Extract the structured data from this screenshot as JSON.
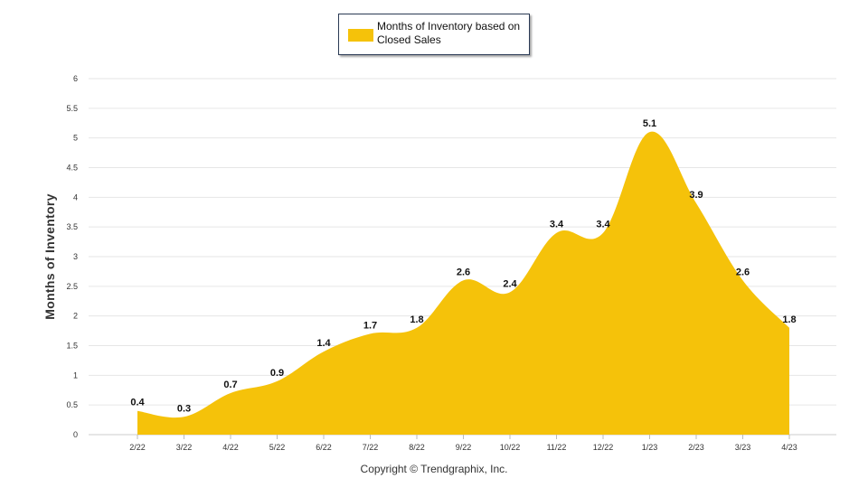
{
  "legend": {
    "label": "Months of Inventory based on Closed Sales"
  },
  "copyright": "Copyright © Trendgraphix, Inc.",
  "colors": {
    "series": "#f5c20a",
    "grid": "#e6e6e6",
    "axis": "#cccccc"
  },
  "chart_data": {
    "type": "area",
    "title": "",
    "xlabel": "",
    "ylabel": "Months of Inventory",
    "ylim": [
      0,
      6
    ],
    "yticks": [
      "0",
      "0.5",
      "1",
      "1.5",
      "2",
      "2.5",
      "3",
      "3.5",
      "4",
      "4.5",
      "5",
      "5.5",
      "6"
    ],
    "grid": true,
    "legend_position": "top-center",
    "categories": [
      "2/22",
      "3/22",
      "4/22",
      "5/22",
      "6/22",
      "7/22",
      "8/22",
      "9/22",
      "10/22",
      "11/22",
      "12/22",
      "1/23",
      "2/23",
      "3/23",
      "4/23"
    ],
    "series": [
      {
        "name": "Months of Inventory based on Closed Sales",
        "values": [
          0.4,
          0.3,
          0.7,
          0.9,
          1.4,
          1.7,
          1.8,
          2.6,
          2.4,
          3.4,
          3.4,
          5.1,
          3.9,
          2.6,
          1.8
        ],
        "labels": [
          "0.4",
          "0.3",
          "0.7",
          "0.9",
          "1.4",
          "1.7",
          "1.8",
          "2.6",
          "2.4",
          "3.4",
          "3.4",
          "5.1",
          "3.9",
          "2.6",
          "1.8"
        ]
      }
    ]
  }
}
